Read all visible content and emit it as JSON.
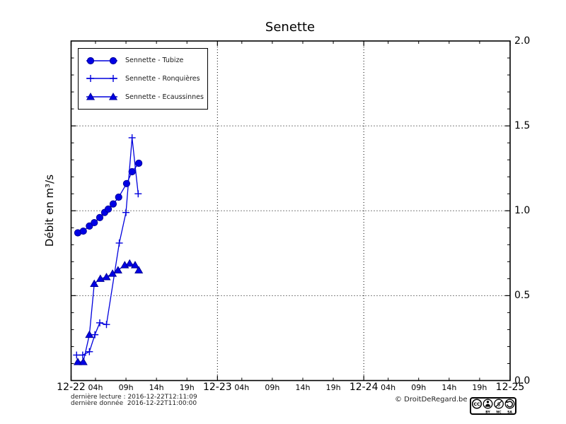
{
  "title": "Senette",
  "ylabel": "Débit en m³/s",
  "colors": {
    "series_line": "#0000dd",
    "marker_fill": "#0000e6",
    "marker_edge": "#000099",
    "frame": "#000000",
    "grid": "#000000"
  },
  "footer": {
    "last_read": "dernière lecture : 2016-12-22T12:11:09",
    "last_data": "dernière donnée  2016-12-22T11:00:00",
    "copyright": "© DroitDeRegard.be",
    "license_letters": [
      "BY",
      "NC",
      "SA"
    ],
    "license_cc_text": "CC"
  },
  "chart_data": {
    "type": "line",
    "title": "Senette",
    "ylabel": "Débit en m³/s",
    "legend_position": "upper left",
    "grid": {
      "style": "dotted",
      "h_lines": [
        0.5,
        1.0,
        1.5
      ],
      "v_lines_hours": [
        24,
        48
      ]
    },
    "x_axis": {
      "unit": "hours from 2016-12-22 00:00",
      "range": [
        0,
        72
      ],
      "major_ticks": [
        {
          "pos": 0,
          "label": "12-22"
        },
        {
          "pos": 24,
          "label": "12-23"
        },
        {
          "pos": 48,
          "label": "12-24"
        },
        {
          "pos": 72,
          "label": "12-25"
        }
      ],
      "minor_ticks": [
        {
          "pos": 4,
          "label": "04h"
        },
        {
          "pos": 9,
          "label": "09h"
        },
        {
          "pos": 14,
          "label": "14h"
        },
        {
          "pos": 19,
          "label": "19h"
        },
        {
          "pos": 28,
          "label": "04h"
        },
        {
          "pos": 33,
          "label": "09h"
        },
        {
          "pos": 38,
          "label": "14h"
        },
        {
          "pos": 43,
          "label": "19h"
        },
        {
          "pos": 52,
          "label": "04h"
        },
        {
          "pos": 57,
          "label": "09h"
        },
        {
          "pos": 62,
          "label": "14h"
        },
        {
          "pos": 67,
          "label": "19h"
        }
      ]
    },
    "y_axis": {
      "range": [
        0,
        2
      ],
      "labels_side": "right",
      "minor_step": 0.1,
      "major_ticks": [
        {
          "pos": 0,
          "label": "0.0"
        },
        {
          "pos": 0.5,
          "label": "0.5"
        },
        {
          "pos": 1,
          "label": "1.0"
        },
        {
          "pos": 1.5,
          "label": "1.5"
        },
        {
          "pos": 2,
          "label": "2.0"
        }
      ]
    },
    "series": [
      {
        "name": "Sennette - Tubize",
        "marker": "circle",
        "points": [
          [
            1.1,
            0.87
          ],
          [
            2.0,
            0.88
          ],
          [
            3.0,
            0.91
          ],
          [
            3.8,
            0.93
          ],
          [
            4.7,
            0.96
          ],
          [
            5.5,
            0.99
          ],
          [
            6.1,
            1.01
          ],
          [
            6.9,
            1.04
          ],
          [
            7.8,
            1.08
          ],
          [
            9.1,
            1.16
          ],
          [
            10.0,
            1.23
          ],
          [
            11.1,
            1.28
          ]
        ]
      },
      {
        "name": "Sennette - Ronquières",
        "marker": "plus",
        "points": [
          [
            0.9,
            0.15
          ],
          [
            1.9,
            0.15
          ],
          [
            3.0,
            0.17
          ],
          [
            3.9,
            0.27
          ],
          [
            4.7,
            0.34
          ],
          [
            5.8,
            0.33
          ],
          [
            7.9,
            0.81
          ],
          [
            9.0,
            0.99
          ],
          [
            10.0,
            1.43
          ],
          [
            11.0,
            1.1
          ]
        ]
      },
      {
        "name": "Sennette - Ecaussinnes",
        "marker": "triangle",
        "points": [
          [
            1.1,
            0.11
          ],
          [
            2.0,
            0.11
          ],
          [
            3.0,
            0.27
          ],
          [
            3.8,
            0.57
          ],
          [
            4.8,
            0.6
          ],
          [
            5.8,
            0.61
          ],
          [
            6.8,
            0.63
          ],
          [
            7.7,
            0.65
          ],
          [
            8.8,
            0.68
          ],
          [
            9.6,
            0.69
          ],
          [
            10.5,
            0.68
          ],
          [
            11.1,
            0.65
          ]
        ]
      }
    ]
  }
}
